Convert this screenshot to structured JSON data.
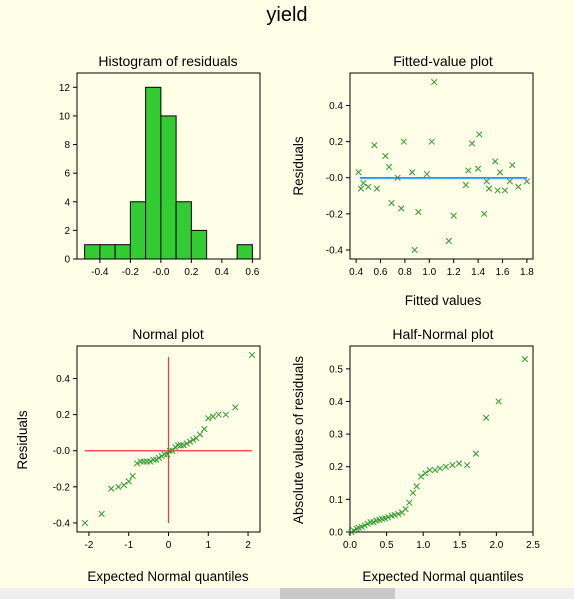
{
  "title": "yield",
  "colors": {
    "background": "#ffffe8",
    "bar_fill": "#33cc33",
    "point": "#2e9a2e",
    "ref_line": "#ff3333",
    "fit_line": "#55aaff"
  },
  "chart_data": [
    {
      "id": "histogram",
      "type": "bar",
      "title": "Histogram of residuals",
      "xlabel": "",
      "ylabel": "",
      "bin_width": 0.1,
      "bins": [
        {
          "x0": -0.5,
          "x1": -0.4,
          "count": 1
        },
        {
          "x0": -0.4,
          "x1": -0.3,
          "count": 1
        },
        {
          "x0": -0.3,
          "x1": -0.2,
          "count": 1
        },
        {
          "x0": -0.2,
          "x1": -0.1,
          "count": 4
        },
        {
          "x0": -0.1,
          "x1": 0.0,
          "count": 12
        },
        {
          "x0": 0.0,
          "x1": 0.1,
          "count": 10
        },
        {
          "x0": 0.1,
          "x1": 0.2,
          "count": 4
        },
        {
          "x0": 0.2,
          "x1": 0.3,
          "count": 2
        },
        {
          "x0": 0.5,
          "x1": 0.6,
          "count": 1
        }
      ],
      "xlim": [
        -0.55,
        0.65
      ],
      "ylim": [
        0,
        13
      ],
      "xticks": [
        -0.4,
        -0.2,
        0.0,
        0.2,
        0.4,
        0.6
      ],
      "xtick_labels": [
        "-0.4",
        "-0.2",
        "-0.0",
        "0.2",
        "0.4",
        "0.6"
      ],
      "yticks": [
        0,
        2,
        4,
        6,
        8,
        10,
        12
      ],
      "ytick_labels": [
        "0",
        "2",
        "4",
        "6",
        "8",
        "10",
        "12"
      ],
      "grid": false
    },
    {
      "id": "fitted",
      "type": "scatter",
      "title": "Fitted-value plot",
      "xlabel": "Fitted values",
      "ylabel": "Residuals",
      "xlim": [
        0.35,
        1.85
      ],
      "ylim": [
        -0.45,
        0.58
      ],
      "xticks": [
        0.4,
        0.6,
        0.8,
        1.0,
        1.2,
        1.4,
        1.6,
        1.8
      ],
      "xtick_labels": [
        "0.4",
        "0.6",
        "0.8",
        "1.0",
        "1.2",
        "1.4",
        "1.6",
        "1.8"
      ],
      "yticks": [
        -0.4,
        -0.2,
        0.0,
        0.2,
        0.4
      ],
      "ytick_labels": [
        "-0.4",
        "-0.2",
        "-0.0",
        "0.2",
        "0.4"
      ],
      "fit_line": {
        "x": [
          0.43,
          1.8
        ],
        "y": [
          -0.005,
          -0.005
        ]
      },
      "ref_line": {
        "x": [
          0.43,
          1.8
        ],
        "y": [
          0.0,
          0.0
        ]
      },
      "points": [
        [
          0.42,
          0.03
        ],
        [
          0.44,
          -0.06
        ],
        [
          0.46,
          -0.03
        ],
        [
          0.5,
          -0.05
        ],
        [
          0.55,
          0.18
        ],
        [
          0.57,
          -0.06
        ],
        [
          0.64,
          0.12
        ],
        [
          0.67,
          0.06
        ],
        [
          0.69,
          -0.14
        ],
        [
          0.74,
          0.0
        ],
        [
          0.77,
          -0.17
        ],
        [
          0.79,
          0.2
        ],
        [
          0.86,
          0.03
        ],
        [
          0.88,
          -0.4
        ],
        [
          0.91,
          -0.19
        ],
        [
          0.98,
          0.02
        ],
        [
          1.02,
          0.2
        ],
        [
          1.04,
          0.53
        ],
        [
          1.16,
          -0.35
        ],
        [
          1.2,
          -0.21
        ],
        [
          1.3,
          -0.04
        ],
        [
          1.32,
          0.04
        ],
        [
          1.35,
          0.19
        ],
        [
          1.4,
          0.05
        ],
        [
          1.41,
          0.24
        ],
        [
          1.45,
          -0.2
        ],
        [
          1.47,
          -0.02
        ],
        [
          1.49,
          -0.06
        ],
        [
          1.54,
          0.09
        ],
        [
          1.56,
          -0.07
        ],
        [
          1.58,
          0.03
        ],
        [
          1.62,
          -0.07
        ],
        [
          1.66,
          -0.02
        ],
        [
          1.68,
          0.07
        ],
        [
          1.73,
          -0.05
        ],
        [
          1.8,
          -0.02
        ]
      ],
      "grid": false
    },
    {
      "id": "normal",
      "type": "scatter",
      "title": "Normal plot",
      "xlabel": "Expected Normal quantiles",
      "ylabel": "Residuals",
      "xlim": [
        -2.3,
        2.3
      ],
      "ylim": [
        -0.45,
        0.58
      ],
      "xticks": [
        -2,
        -1,
        0,
        1,
        2
      ],
      "xtick_labels": [
        "-2",
        "-1",
        "0",
        "1",
        "2"
      ],
      "yticks": [
        -0.4,
        -0.2,
        0.0,
        0.2,
        0.4
      ],
      "ytick_labels": [
        "-0.4",
        "-0.2",
        "-0.0",
        "0.2",
        "0.4"
      ],
      "ref_lines": [
        {
          "x": [
            -2.1,
            2.1
          ],
          "y": [
            0.0,
            0.0
          ]
        },
        {
          "x": [
            0.0,
            0.0
          ],
          "y": [
            -0.4,
            0.52
          ]
        }
      ],
      "points": [
        [
          -2.1,
          -0.4
        ],
        [
          -1.68,
          -0.35
        ],
        [
          -1.44,
          -0.21
        ],
        [
          -1.26,
          -0.2
        ],
        [
          -1.12,
          -0.19
        ],
        [
          -1.0,
          -0.17
        ],
        [
          -0.9,
          -0.14
        ],
        [
          -0.79,
          -0.07
        ],
        [
          -0.7,
          -0.06
        ],
        [
          -0.62,
          -0.06
        ],
        [
          -0.54,
          -0.06
        ],
        [
          -0.46,
          -0.06
        ],
        [
          -0.38,
          -0.05
        ],
        [
          -0.31,
          -0.05
        ],
        [
          -0.24,
          -0.04
        ],
        [
          -0.17,
          -0.03
        ],
        [
          -0.1,
          -0.02
        ],
        [
          -0.03,
          -0.02
        ],
        [
          0.03,
          0.0
        ],
        [
          0.1,
          0.0
        ],
        [
          0.17,
          0.02
        ],
        [
          0.24,
          0.03
        ],
        [
          0.31,
          0.03
        ],
        [
          0.38,
          0.03
        ],
        [
          0.46,
          0.04
        ],
        [
          0.54,
          0.05
        ],
        [
          0.62,
          0.06
        ],
        [
          0.7,
          0.07
        ],
        [
          0.79,
          0.09
        ],
        [
          0.9,
          0.12
        ],
        [
          1.0,
          0.18
        ],
        [
          1.12,
          0.19
        ],
        [
          1.26,
          0.2
        ],
        [
          1.44,
          0.2
        ],
        [
          1.68,
          0.24
        ],
        [
          2.1,
          0.53
        ]
      ],
      "grid": false
    },
    {
      "id": "halfnormal",
      "type": "scatter",
      "title": "Half-Normal plot",
      "xlabel": "Expected Normal quantiles",
      "ylabel": "Absolute values of residuals",
      "xlim": [
        0.0,
        2.5
      ],
      "ylim": [
        0.0,
        0.57
      ],
      "xticks": [
        0.0,
        0.5,
        1.0,
        1.5,
        2.0,
        2.5
      ],
      "xtick_labels": [
        "0.0",
        "0.5",
        "1.0",
        "1.5",
        "2.0",
        "2.5"
      ],
      "yticks": [
        0.0,
        0.1,
        0.2,
        0.3,
        0.4,
        0.5
      ],
      "ytick_labels": [
        "0.0",
        "0.1",
        "0.2",
        "0.3",
        "0.4",
        "0.5"
      ],
      "points": [
        [
          0.02,
          0.0
        ],
        [
          0.05,
          0.005
        ],
        [
          0.09,
          0.01
        ],
        [
          0.12,
          0.013
        ],
        [
          0.16,
          0.016
        ],
        [
          0.2,
          0.02
        ],
        [
          0.24,
          0.025
        ],
        [
          0.28,
          0.03
        ],
        [
          0.32,
          0.03
        ],
        [
          0.36,
          0.035
        ],
        [
          0.4,
          0.037
        ],
        [
          0.44,
          0.04
        ],
        [
          0.48,
          0.042
        ],
        [
          0.52,
          0.045
        ],
        [
          0.57,
          0.05
        ],
        [
          0.61,
          0.052
        ],
        [
          0.66,
          0.055
        ],
        [
          0.71,
          0.06
        ],
        [
          0.76,
          0.07
        ],
        [
          0.81,
          0.09
        ],
        [
          0.86,
          0.12
        ],
        [
          0.91,
          0.14
        ],
        [
          0.97,
          0.17
        ],
        [
          1.03,
          0.18
        ],
        [
          1.09,
          0.19
        ],
        [
          1.16,
          0.19
        ],
        [
          1.23,
          0.195
        ],
        [
          1.31,
          0.2
        ],
        [
          1.4,
          0.205
        ],
        [
          1.49,
          0.21
        ],
        [
          1.6,
          0.205
        ],
        [
          1.72,
          0.24
        ],
        [
          1.86,
          0.35
        ],
        [
          2.03,
          0.4
        ],
        [
          2.39,
          0.53
        ]
      ],
      "grid": false
    }
  ]
}
